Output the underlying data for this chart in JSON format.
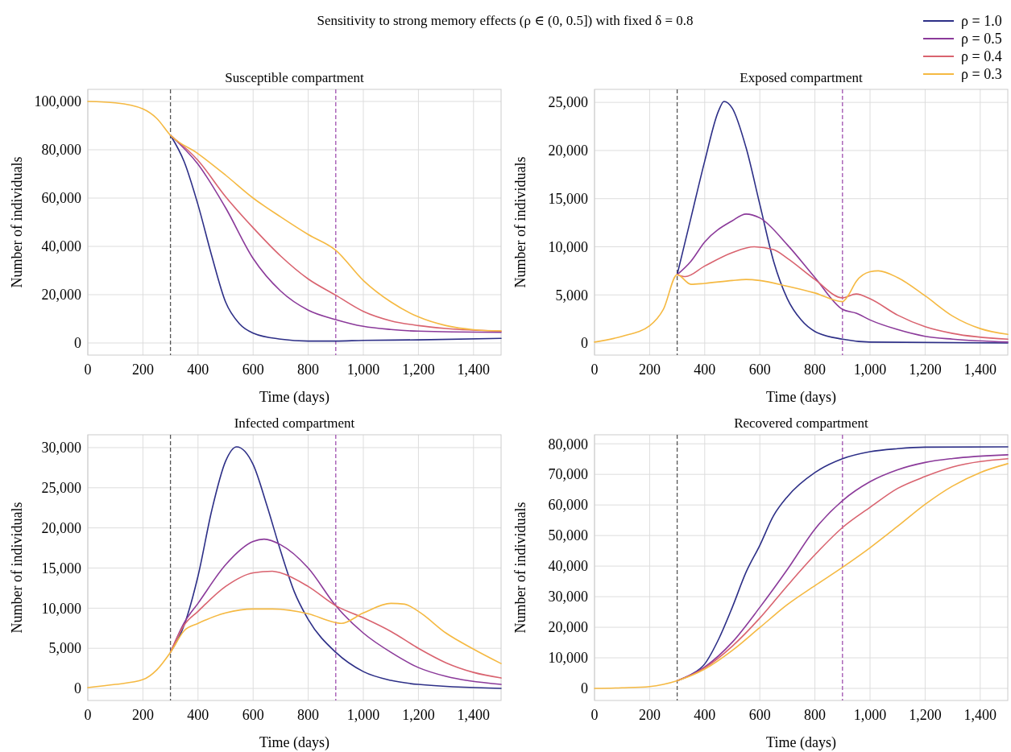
{
  "chart_data": [
    {
      "type": "line",
      "title": "Sensitivity to strong memory effects (ρ ∈ (0, 0.5]) with fixed δ = 0.8",
      "subtitle": "Susceptible compartment",
      "xlabel": "Time (days)",
      "ylabel": "Number of individuals",
      "xlim": [
        0,
        1500
      ],
      "xticks": [
        0,
        200,
        400,
        600,
        800,
        {
          "value": 1000,
          "label": "1,000"
        },
        {
          "value": 1200,
          "label": "1,200"
        },
        {
          "value": 1400,
          "label": "1,400"
        }
      ],
      "ylim": [
        -5000,
        105000
      ],
      "yticks": [
        {
          "value": 0,
          "label": "0"
        },
        {
          "value": 20000,
          "label": "20,000"
        },
        {
          "value": 40000,
          "label": "40,000"
        },
        {
          "value": 60000,
          "label": "60,000"
        },
        {
          "value": 80000,
          "label": "80,000"
        },
        {
          "value": 100000,
          "label": "100,000"
        }
      ],
      "grid": true,
      "legend": "top right",
      "line_style": "solid",
      "marker": "none",
      "ref_lines": [
        {
          "axis": "x",
          "value": 300,
          "color": "#555555",
          "line_style": "dashed"
        },
        {
          "axis": "x",
          "value": 900,
          "color": "#a050b0",
          "line_style": "dashed"
        }
      ],
      "series": [
        {
          "name": "ρ = 1.0",
          "color": "#2d2f87",
          "x": [
            300,
            350,
            400,
            450,
            500,
            550,
            600,
            700,
            800,
            900,
            1000,
            1200,
            1500
          ],
          "values": [
            86000,
            75000,
            57200,
            36000,
            17000,
            8000,
            4100,
            1600,
            800,
            800,
            1100,
            1300,
            1900
          ]
        },
        {
          "name": "ρ = 0.5",
          "color": "#8b3a9a",
          "x": [
            300,
            400,
            500,
            600,
            700,
            800,
            900,
            1000,
            1100,
            1200,
            1500
          ],
          "values": [
            86000,
            74000,
            56000,
            35000,
            21500,
            13600,
            9700,
            6900,
            5600,
            4900,
            4400
          ]
        },
        {
          "name": "ρ = 0.4",
          "color": "#d9636f",
          "x": [
            300,
            400,
            500,
            600,
            700,
            800,
            900,
            1000,
            1100,
            1200,
            1300,
            1500
          ],
          "values": [
            86000,
            75600,
            60600,
            47700,
            36000,
            26500,
            19800,
            13100,
            9200,
            7200,
            6000,
            4900
          ]
        },
        {
          "name": "ρ = 0.3",
          "color": "#f5b942",
          "x": [
            0,
            100,
            200,
            250,
            300,
            400,
            500,
            600,
            700,
            800,
            900,
            1000,
            1100,
            1200,
            1300,
            1400,
            1500
          ],
          "values": [
            100000,
            99400,
            96900,
            93000,
            86000,
            78400,
            69500,
            60000,
            52200,
            44900,
            38400,
            25900,
            17000,
            10800,
            7200,
            5500,
            5000
          ]
        }
      ]
    },
    {
      "type": "line",
      "title": "Exposed compartment",
      "xlabel": "Time (days)",
      "ylabel": "Number of individuals",
      "xlim": [
        0,
        1500
      ],
      "xticks": [
        0,
        200,
        400,
        600,
        800,
        {
          "value": 1000,
          "label": "1,000"
        },
        {
          "value": 1200,
          "label": "1,200"
        },
        {
          "value": 1400,
          "label": "1,400"
        }
      ],
      "ylim": [
        -1250,
        26350
      ],
      "yticks": [
        {
          "value": 0,
          "label": "0"
        },
        {
          "value": 5000,
          "label": "5,000"
        },
        {
          "value": 10000,
          "label": "10,000"
        },
        {
          "value": 15000,
          "label": "15,000"
        },
        {
          "value": 20000,
          "label": "20,000"
        },
        {
          "value": 25000,
          "label": "25,000"
        }
      ],
      "grid": true,
      "line_style": "solid",
      "marker": "none",
      "ref_lines": [
        {
          "axis": "x",
          "value": 300,
          "color": "#555555",
          "line_style": "dashed"
        },
        {
          "axis": "x",
          "value": 900,
          "color": "#a050b0",
          "line_style": "dashed"
        }
      ],
      "series": [
        {
          "color": "#2d2f87",
          "x": [
            300,
            350,
            400,
            450,
            470,
            500,
            550,
            600,
            650,
            700,
            750,
            800,
            900,
            1000,
            1500
          ],
          "values": [
            7100,
            13000,
            18900,
            24100,
            25100,
            24400,
            20300,
            14400,
            8500,
            4600,
            2400,
            1200,
            400,
            100,
            0
          ]
        },
        {
          "color": "#8b3a9a",
          "x": [
            300,
            350,
            400,
            500,
            550,
            600,
            700,
            800,
            900,
            950,
            1000,
            1100,
            1200,
            1300,
            1500
          ],
          "values": [
            7100,
            8500,
            10500,
            12700,
            13400,
            13000,
            10200,
            6800,
            3500,
            3100,
            2400,
            1400,
            700,
            400,
            100
          ]
        },
        {
          "color": "#d9636f",
          "x": [
            300,
            330,
            400,
            500,
            580,
            650,
            700,
            800,
            900,
            950,
            1000,
            1100,
            1200,
            1300,
            1500
          ],
          "values": [
            7100,
            6900,
            8000,
            9400,
            10000,
            9700,
            8800,
            6600,
            4700,
            5100,
            4600,
            2900,
            1700,
            1000,
            400
          ]
        },
        {
          "color": "#f5b942",
          "x": [
            0,
            100,
            200,
            250,
            300,
            350,
            400,
            500,
            550,
            600,
            700,
            800,
            900,
            920,
            950,
            1000,
            1030,
            1100,
            1200,
            1300,
            1400,
            1500
          ],
          "values": [
            100,
            700,
            1800,
            3500,
            7100,
            6100,
            6200,
            6500,
            6600,
            6500,
            5900,
            5200,
            4300,
            4900,
            6400,
            7400,
            7500,
            6800,
            4900,
            2800,
            1500,
            900
          ]
        }
      ]
    },
    {
      "type": "line",
      "title": "Infected compartment",
      "xlabel": "Time (days)",
      "ylabel": "Number of individuals",
      "xlim": [
        0,
        1500
      ],
      "xticks": [
        0,
        200,
        400,
        600,
        800,
        {
          "value": 1000,
          "label": "1,000"
        },
        {
          "value": 1200,
          "label": "1,200"
        },
        {
          "value": 1400,
          "label": "1,400"
        }
      ],
      "ylim": [
        -1500,
        31600
      ],
      "yticks": [
        {
          "value": 0,
          "label": "0"
        },
        {
          "value": 5000,
          "label": "5,000"
        },
        {
          "value": 10000,
          "label": "10,000"
        },
        {
          "value": 15000,
          "label": "15,000"
        },
        {
          "value": 20000,
          "label": "20,000"
        },
        {
          "value": 25000,
          "label": "25,000"
        },
        {
          "value": 30000,
          "label": "30,000"
        }
      ],
      "grid": true,
      "line_style": "solid",
      "marker": "none",
      "ref_lines": [
        {
          "axis": "x",
          "value": 300,
          "color": "#555555",
          "line_style": "dashed"
        },
        {
          "axis": "x",
          "value": 900,
          "color": "#a050b0",
          "line_style": "dashed"
        }
      ],
      "series": [
        {
          "color": "#2d2f87",
          "x": [
            300,
            350,
            400,
            450,
            500,
            540,
            600,
            650,
            700,
            750,
            800,
            900,
            1000,
            1100,
            1200,
            1500
          ],
          "values": [
            4500,
            7900,
            14000,
            22200,
            28300,
            30100,
            27900,
            22800,
            17100,
            12000,
            8600,
            4500,
            2100,
            1000,
            500,
            0
          ]
        },
        {
          "color": "#8b3a9a",
          "x": [
            300,
            350,
            400,
            500,
            600,
            640,
            700,
            800,
            900,
            1000,
            1100,
            1200,
            1300,
            1500
          ],
          "values": [
            4500,
            8200,
            10600,
            15400,
            18300,
            18600,
            17900,
            15000,
            10300,
            6900,
            4500,
            2600,
            1500,
            500
          ]
        },
        {
          "color": "#d9636f",
          "x": [
            300,
            350,
            400,
            500,
            600,
            670,
            700,
            800,
            900,
            1000,
            1100,
            1200,
            1300,
            1400,
            1500
          ],
          "values": [
            4500,
            7900,
            9600,
            12700,
            14400,
            14600,
            14400,
            12700,
            10300,
            8800,
            7100,
            5000,
            3200,
            2000,
            1300
          ]
        },
        {
          "color": "#f5b942",
          "x": [
            0,
            100,
            200,
            250,
            300,
            350,
            400,
            500,
            600,
            670,
            800,
            900,
            920,
            1000,
            1100,
            1150,
            1200,
            1300,
            1400,
            1500
          ],
          "values": [
            100,
            500,
            1100,
            2300,
            4500,
            7200,
            8100,
            9400,
            9900,
            9900,
            9300,
            8200,
            8100,
            9400,
            10600,
            10500,
            9600,
            6900,
            4900,
            3100
          ]
        }
      ]
    },
    {
      "type": "line",
      "title": "Recovered compartment",
      "xlabel": "Time (days)",
      "ylabel": "Number of individuals",
      "xlim": [
        0,
        1500
      ],
      "xticks": [
        0,
        200,
        400,
        600,
        800,
        {
          "value": 1000,
          "label": "1,000"
        },
        {
          "value": 1200,
          "label": "1,200"
        },
        {
          "value": 1400,
          "label": "1,400"
        }
      ],
      "ylim": [
        -3950,
        82950
      ],
      "yticks": [
        {
          "value": 0,
          "label": "0"
        },
        {
          "value": 10000,
          "label": "10,000"
        },
        {
          "value": 20000,
          "label": "20,000"
        },
        {
          "value": 30000,
          "label": "30,000"
        },
        {
          "value": 40000,
          "label": "40,000"
        },
        {
          "value": 50000,
          "label": "50,000"
        },
        {
          "value": 60000,
          "label": "60,000"
        },
        {
          "value": 70000,
          "label": "70,000"
        },
        {
          "value": 80000,
          "label": "80,000"
        }
      ],
      "grid": true,
      "line_style": "solid",
      "marker": "none",
      "ref_lines": [
        {
          "axis": "x",
          "value": 300,
          "color": "#555555",
          "line_style": "dashed"
        },
        {
          "axis": "x",
          "value": 900,
          "color": "#a050b0",
          "line_style": "dashed"
        }
      ],
      "series": [
        {
          "color": "#2d2f87",
          "x": [
            300,
            350,
            400,
            450,
            500,
            550,
            600,
            650,
            700,
            800,
            900,
            1000,
            1100,
            1200,
            1500
          ],
          "values": [
            2500,
            4500,
            8000,
            16000,
            26500,
            38000,
            46800,
            56500,
            62700,
            70600,
            75100,
            77400,
            78400,
            78900,
            79000
          ]
        },
        {
          "color": "#8b3a9a",
          "x": [
            300,
            400,
            500,
            600,
            700,
            800,
            900,
            1000,
            1100,
            1200,
            1300,
            1500
          ],
          "values": [
            2500,
            7000,
            15100,
            26500,
            38900,
            52100,
            61400,
            67600,
            71500,
            73900,
            75200,
            76400
          ]
        },
        {
          "color": "#d9636f",
          "x": [
            300,
            400,
            500,
            600,
            700,
            800,
            900,
            1000,
            1100,
            1200,
            1300,
            1500
          ],
          "values": [
            2500,
            6700,
            13800,
            23000,
            33600,
            43700,
            52600,
            59200,
            65400,
            69300,
            72400,
            75100
          ]
        },
        {
          "color": "#f5b942",
          "x": [
            0,
            100,
            200,
            250,
            300,
            400,
            500,
            600,
            700,
            800,
            900,
            1000,
            1100,
            1200,
            1300,
            1400,
            1500
          ],
          "values": [
            0,
            200,
            600,
            1300,
            2500,
            6300,
            12400,
            19900,
            27400,
            33600,
            39600,
            46000,
            53000,
            60200,
            66200,
            70600,
            73500
          ]
        }
      ]
    }
  ]
}
